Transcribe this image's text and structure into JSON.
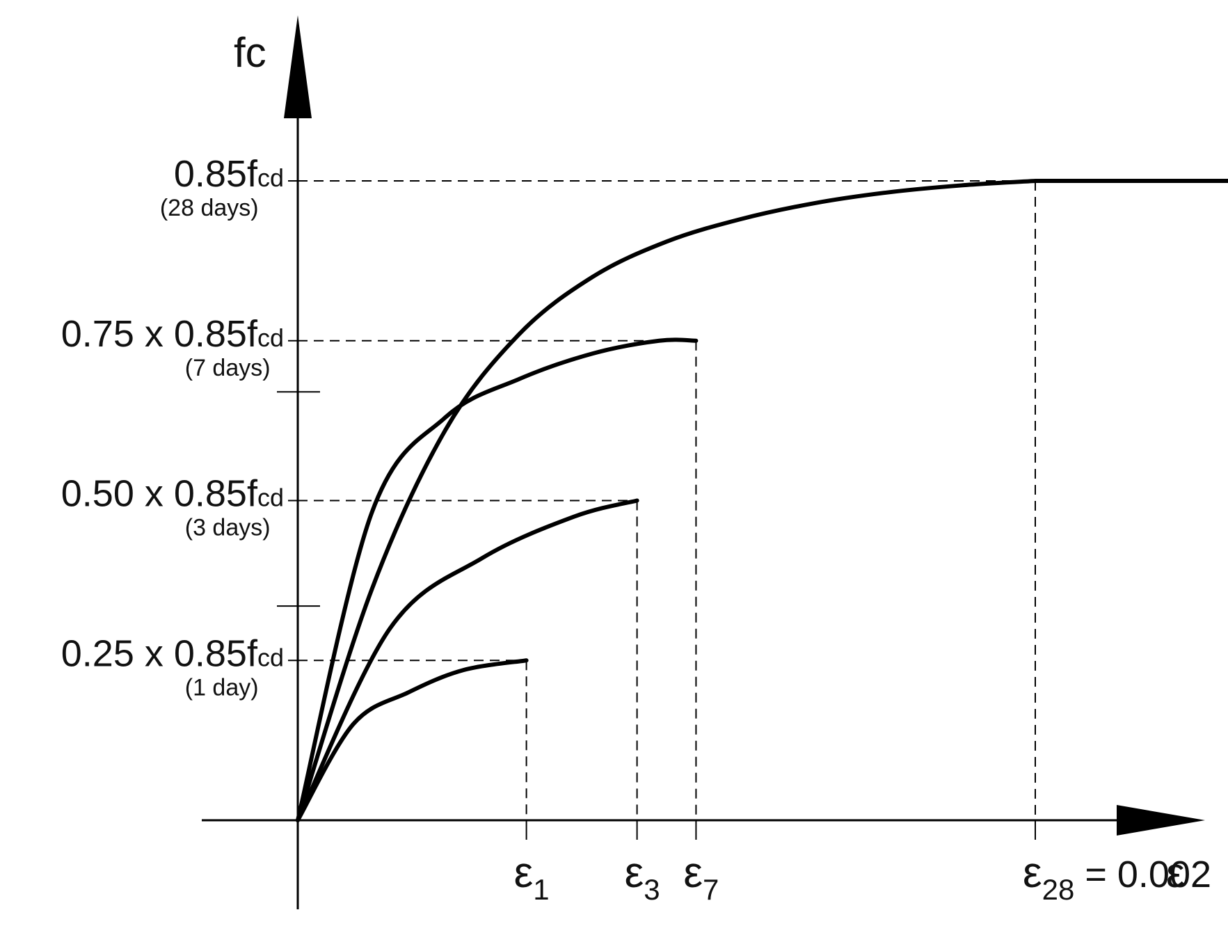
{
  "chart_data": {
    "type": "line",
    "ylabel": "fc",
    "xlabel": "ε",
    "xlim": [
      0,
      0.0036
    ],
    "ylim": [
      0,
      1.0
    ],
    "y_levels": [
      {
        "value": 0.25,
        "label_main": "0.25 x 0.85f",
        "label_sub": "cd",
        "label_age": "(1 day)"
      },
      {
        "value": 0.5,
        "label_main": "0.50 x 0.85f",
        "label_sub": "cd",
        "label_age": "(3 days)"
      },
      {
        "value": 0.75,
        "label_main": "0.75 x 0.85f",
        "label_sub": "cd",
        "label_age": "(7 days)"
      },
      {
        "value": 1.0,
        "label_main": "0.85f",
        "label_sub": "cd",
        "label_age": "(28 days)"
      }
    ],
    "extra_y_ticks": [
      0.335,
      0.67
    ],
    "x_markers": [
      {
        "value": 0.00062,
        "symbol": "ε",
        "subscript": "1",
        "suffix": ""
      },
      {
        "value": 0.00092,
        "symbol": "ε",
        "subscript": "3",
        "suffix": ""
      },
      {
        "value": 0.00108,
        "symbol": "ε",
        "subscript": "7",
        "suffix": ""
      },
      {
        "value": 0.002,
        "symbol": "ε",
        "subscript": "28",
        "suffix": "= 0.002"
      }
    ],
    "end_marker": 0.0035,
    "series": [
      {
        "x": [
          0,
          0.00015,
          0.0003,
          0.00045,
          0.00062
        ],
        "y": [
          0,
          0.15,
          0.2,
          0.235,
          0.25
        ]
      },
      {
        "x": [
          0,
          0.00025,
          0.0005,
          0.00075,
          0.00092
        ],
        "y": [
          0,
          0.3,
          0.41,
          0.475,
          0.5
        ]
      },
      {
        "x": [
          0,
          0.0002,
          0.0004,
          0.0006,
          0.0008,
          0.00098,
          0.00108
        ],
        "y": [
          0,
          0.48,
          0.63,
          0.69,
          0.73,
          0.75,
          0.75
        ]
      },
      {
        "x": [
          0,
          0.0002,
          0.0004,
          0.0006,
          0.0008,
          0.001,
          0.0012,
          0.0014,
          0.0016,
          0.0018,
          0.002,
          0.0035
        ],
        "y": [
          0,
          0.36,
          0.61,
          0.76,
          0.85,
          0.905,
          0.94,
          0.965,
          0.982,
          0.993,
          1.0,
          1.0
        ]
      }
    ]
  }
}
